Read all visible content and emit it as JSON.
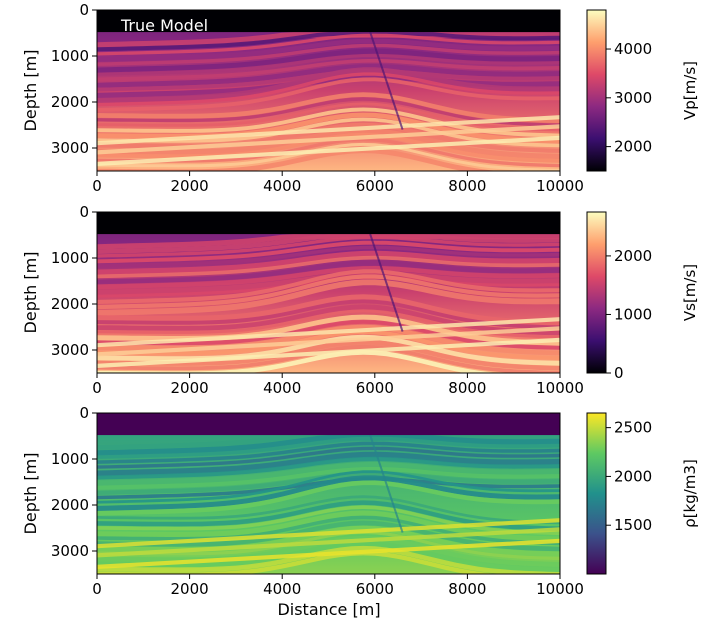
{
  "figure": {
    "xlabel": "Distance [m]"
  },
  "chart_data": [
    {
      "type": "heatmap",
      "annotation": "True Model",
      "ylabel": "Depth [m]",
      "colorbar_label": "Vp[m/s]",
      "colormap": "magma",
      "colors": [
        "#000004",
        "#3b0f70",
        "#8c2981",
        "#de4968",
        "#fe9f6d",
        "#fcfdbf"
      ],
      "x_ticks": [
        0,
        2000,
        4000,
        6000,
        8000,
        10000
      ],
      "y_ticks": [
        0,
        1000,
        2000,
        3000
      ],
      "xlim": [
        0,
        10000
      ],
      "ylim": [
        3500,
        0
      ],
      "colorbar_ticks": [
        2000,
        3000,
        4000
      ],
      "color_range": [
        1500,
        4800
      ],
      "water_layer_bottom": 480
    },
    {
      "type": "heatmap",
      "ylabel": "Depth [m]",
      "colorbar_label": "Vs[m/s]",
      "colormap": "magma",
      "colors": [
        "#000004",
        "#3b0f70",
        "#8c2981",
        "#de4968",
        "#fe9f6d",
        "#fcfdbf"
      ],
      "x_ticks": [
        0,
        2000,
        4000,
        6000,
        8000,
        10000
      ],
      "y_ticks": [
        0,
        1000,
        2000,
        3000
      ],
      "xlim": [
        0,
        10000
      ],
      "ylim": [
        3500,
        0
      ],
      "colorbar_ticks": [
        0,
        1000,
        2000
      ],
      "color_range": [
        0,
        2750
      ],
      "water_layer_bottom": 480
    },
    {
      "type": "heatmap",
      "ylabel": "Depth [m]",
      "colorbar_label": "ρ[kg/m3]",
      "colormap": "viridis",
      "colors": [
        "#440154",
        "#3b528b",
        "#21918c",
        "#5ec962",
        "#fde725"
      ],
      "x_ticks": [
        0,
        2000,
        4000,
        6000,
        8000,
        10000
      ],
      "y_ticks": [
        0,
        1000,
        2000,
        3000
      ],
      "xlim": [
        0,
        10000
      ],
      "ylim": [
        3500,
        0
      ],
      "colorbar_ticks": [
        1500,
        2000,
        2500
      ],
      "color_range": [
        1000,
        2650
      ],
      "water_layer_bottom": 480
    }
  ]
}
